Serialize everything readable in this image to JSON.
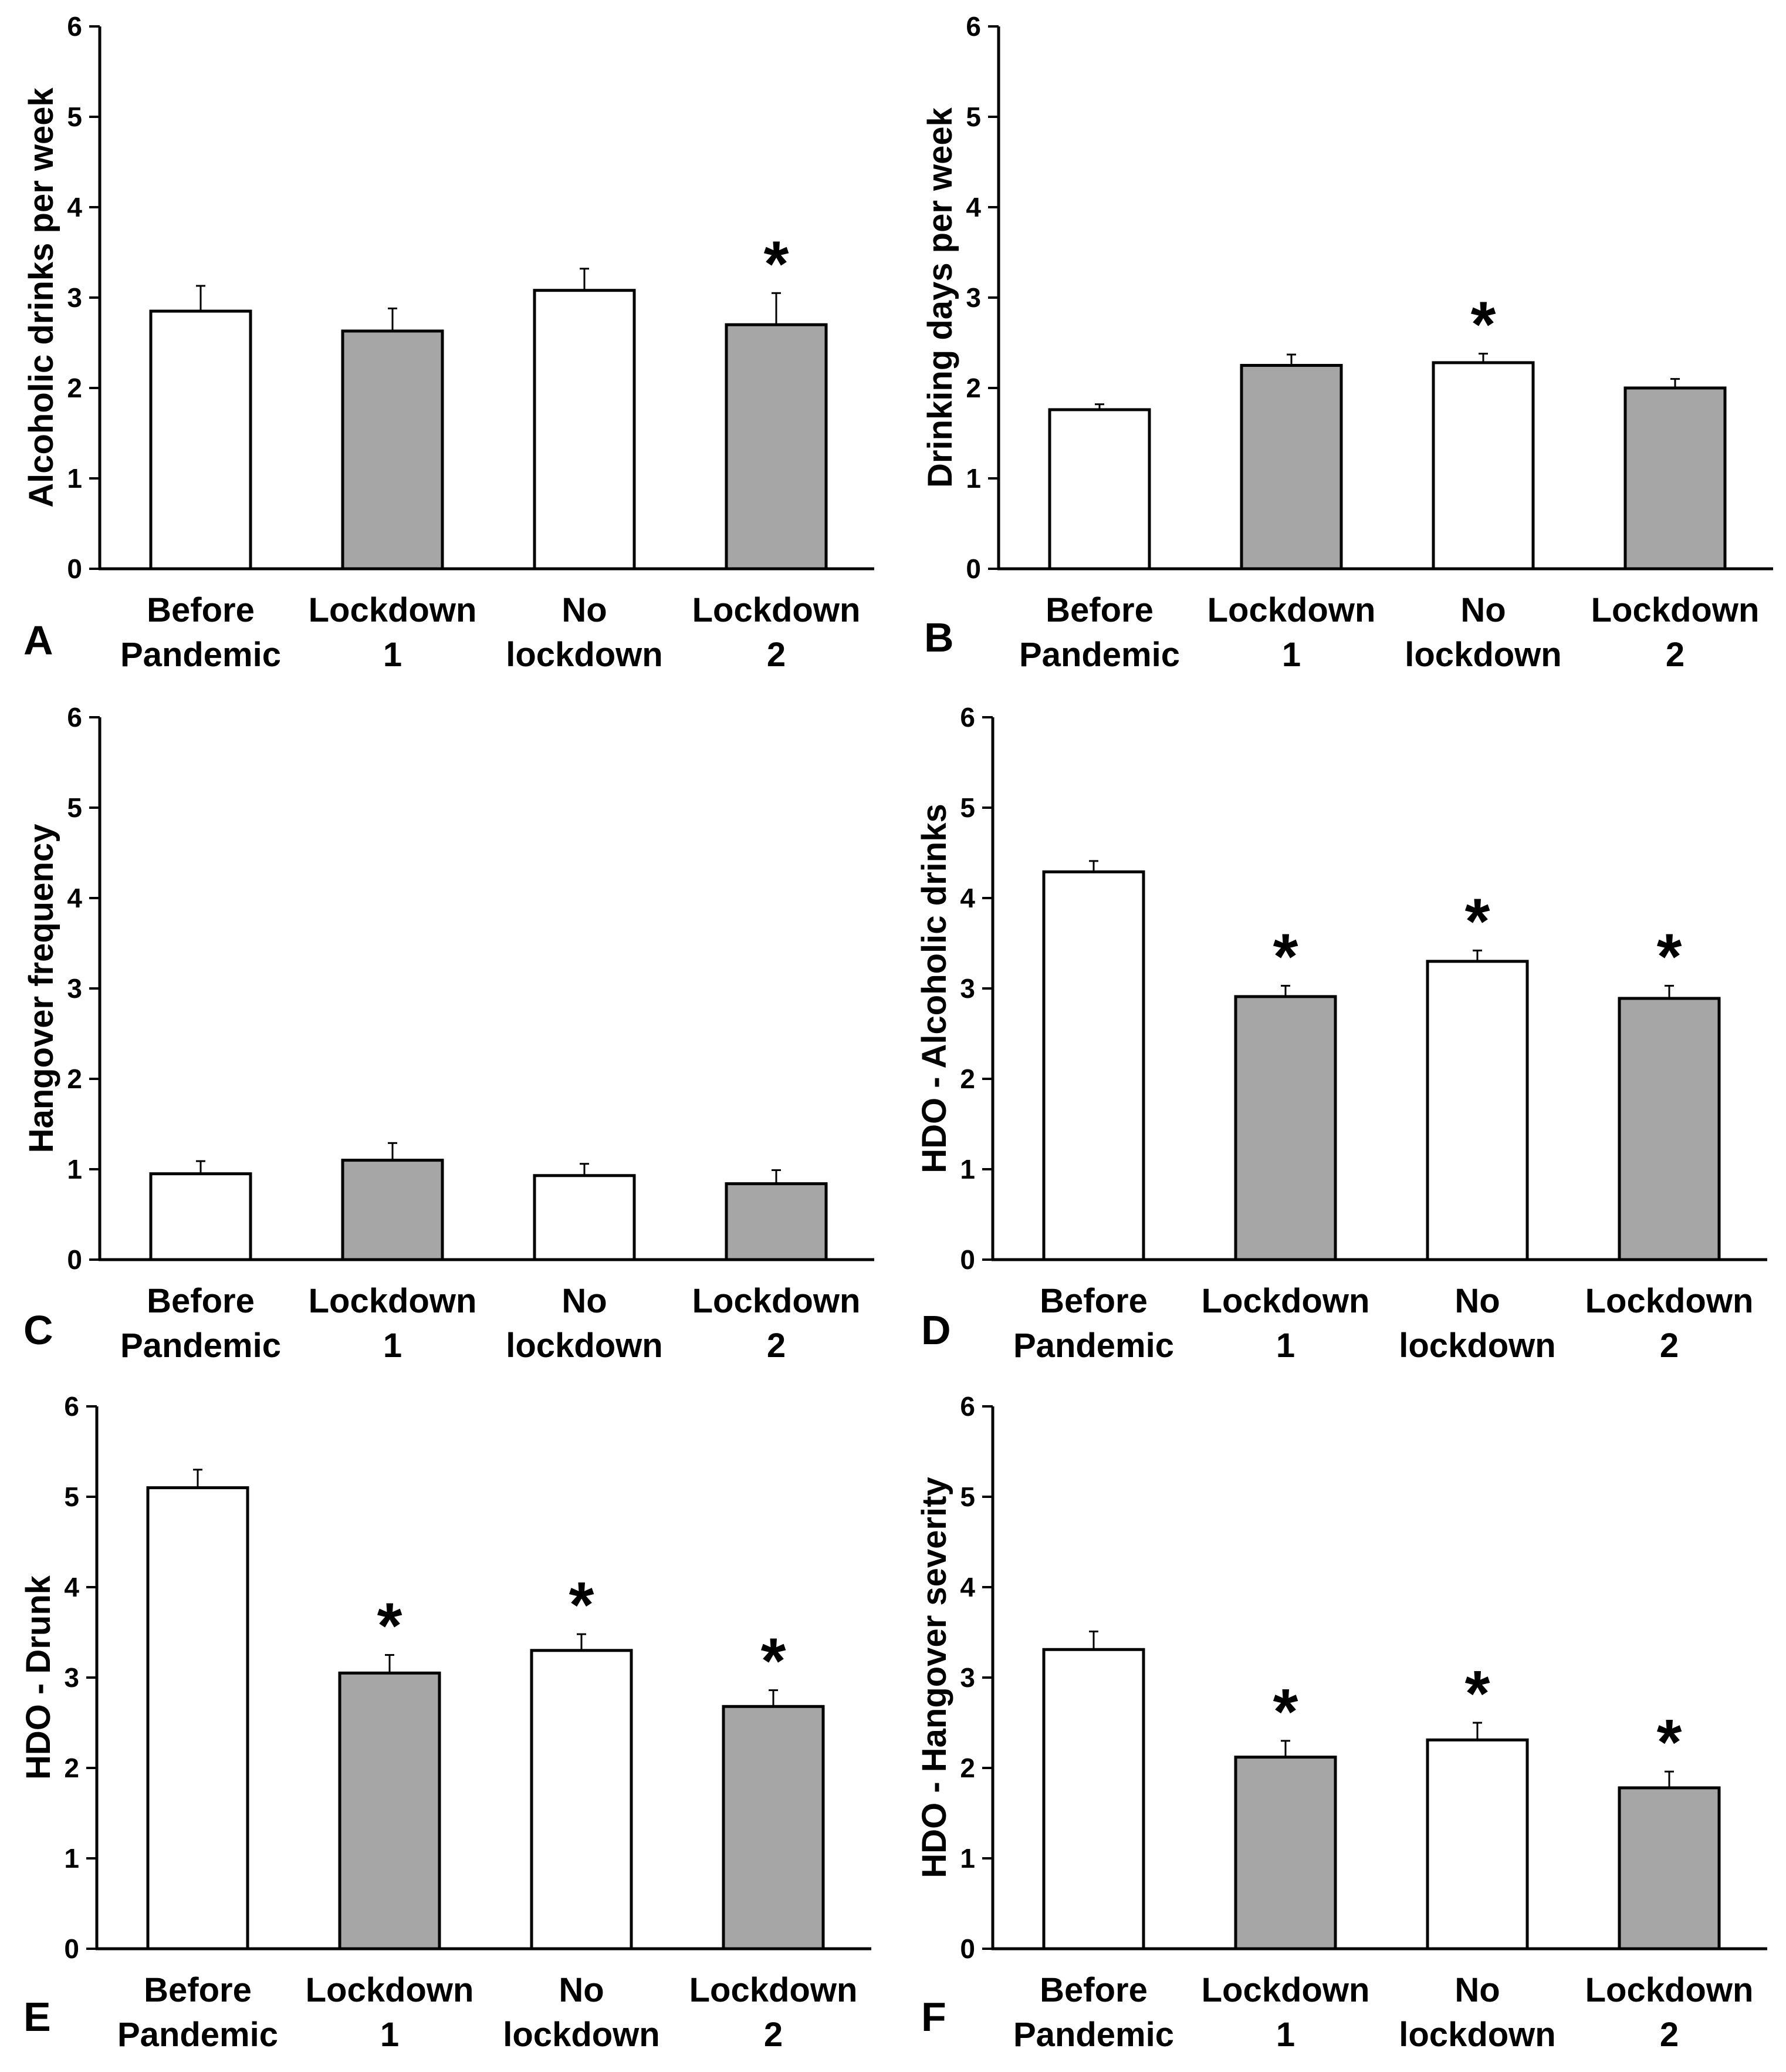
{
  "chart_data": [
    {
      "type": "bar",
      "panel": "A",
      "ylabel": "Alcoholic drinks per week",
      "ylim": [
        0,
        6
      ],
      "yticks": [
        "0",
        "1",
        "2",
        "3",
        "4",
        "5",
        "6"
      ],
      "categories": [
        [
          "Before",
          "Pandemic"
        ],
        [
          "Lockdown",
          "1"
        ],
        [
          "No",
          "lockdown"
        ],
        [
          "Lockdown",
          "2"
        ]
      ],
      "values": [
        2.85,
        2.63,
        3.08,
        2.7
      ],
      "errors": [
        0.28,
        0.25,
        0.24,
        0.35
      ],
      "fills": [
        "#ffffff",
        "#a6a6a6",
        "#ffffff",
        "#a6a6a6"
      ],
      "significance": [
        "",
        "",
        "",
        "*"
      ]
    },
    {
      "type": "bar",
      "panel": "B",
      "ylabel": "Drinking days per week",
      "ylim": [
        0,
        6
      ],
      "yticks": [
        "0",
        "1",
        "2",
        "3",
        "4",
        "5",
        "6"
      ],
      "categories": [
        [
          "Before",
          "Pandemic"
        ],
        [
          "Lockdown",
          "1"
        ],
        [
          "No",
          "lockdown"
        ],
        [
          "Lockdown",
          "2"
        ]
      ],
      "values": [
        1.76,
        2.25,
        2.28,
        2.0
      ],
      "errors": [
        0.06,
        0.12,
        0.1,
        0.1
      ],
      "fills": [
        "#ffffff",
        "#a6a6a6",
        "#ffffff",
        "#a6a6a6"
      ],
      "significance": [
        "",
        "",
        "*",
        ""
      ]
    },
    {
      "type": "bar",
      "panel": "C",
      "ylabel": "Hangover frequency",
      "ylim": [
        0,
        6
      ],
      "yticks": [
        "0",
        "1",
        "2",
        "3",
        "4",
        "5",
        "6"
      ],
      "categories": [
        [
          "Before",
          "Pandemic"
        ],
        [
          "Lockdown",
          "1"
        ],
        [
          "No",
          "lockdown"
        ],
        [
          "Lockdown",
          "2"
        ]
      ],
      "values": [
        0.95,
        1.1,
        0.93,
        0.84
      ],
      "errors": [
        0.14,
        0.19,
        0.13,
        0.15
      ],
      "fills": [
        "#ffffff",
        "#a6a6a6",
        "#ffffff",
        "#a6a6a6"
      ],
      "significance": [
        "",
        "",
        "",
        ""
      ]
    },
    {
      "type": "bar",
      "panel": "D",
      "ylabel": "HDO - Alcoholic drinks",
      "ylim": [
        0,
        6
      ],
      "yticks": [
        "0",
        "1",
        "2",
        "3",
        "4",
        "5",
        "6"
      ],
      "categories": [
        [
          "Before",
          "Pandemic"
        ],
        [
          "Lockdown",
          "1"
        ],
        [
          "No",
          "lockdown"
        ],
        [
          "Lockdown",
          "2"
        ]
      ],
      "values": [
        4.29,
        2.91,
        3.3,
        2.89
      ],
      "errors": [
        0.12,
        0.12,
        0.12,
        0.14
      ],
      "fills": [
        "#ffffff",
        "#a6a6a6",
        "#ffffff",
        "#a6a6a6"
      ],
      "significance": [
        "",
        "*",
        "*",
        "*"
      ]
    },
    {
      "type": "bar",
      "panel": "E",
      "ylabel": "HDO - Drunk",
      "ylim": [
        0,
        6
      ],
      "yticks": [
        "0",
        "1",
        "2",
        "3",
        "4",
        "5",
        "6"
      ],
      "categories": [
        [
          "Before",
          "Pandemic"
        ],
        [
          "Lockdown",
          "1"
        ],
        [
          "No",
          "lockdown"
        ],
        [
          "Lockdown",
          "2"
        ]
      ],
      "values": [
        5.1,
        3.05,
        3.3,
        2.68
      ],
      "errors": [
        0.2,
        0.2,
        0.18,
        0.18
      ],
      "fills": [
        "#ffffff",
        "#a6a6a6",
        "#ffffff",
        "#a6a6a6"
      ],
      "significance": [
        "",
        "*",
        "*",
        "*"
      ]
    },
    {
      "type": "bar",
      "panel": "F",
      "ylabel": "HDO - Hangover severity",
      "ylim": [
        0,
        6
      ],
      "yticks": [
        "0",
        "1",
        "2",
        "3",
        "4",
        "5",
        "6"
      ],
      "categories": [
        [
          "Before",
          "Pandemic"
        ],
        [
          "Lockdown",
          "1"
        ],
        [
          "No",
          "lockdown"
        ],
        [
          "Lockdown",
          "2"
        ]
      ],
      "values": [
        3.31,
        2.12,
        2.31,
        1.78
      ],
      "errors": [
        0.2,
        0.18,
        0.19,
        0.18
      ],
      "fills": [
        "#ffffff",
        "#a6a6a6",
        "#ffffff",
        "#a6a6a6"
      ],
      "significance": [
        "",
        "*",
        "*",
        "*"
      ]
    }
  ]
}
